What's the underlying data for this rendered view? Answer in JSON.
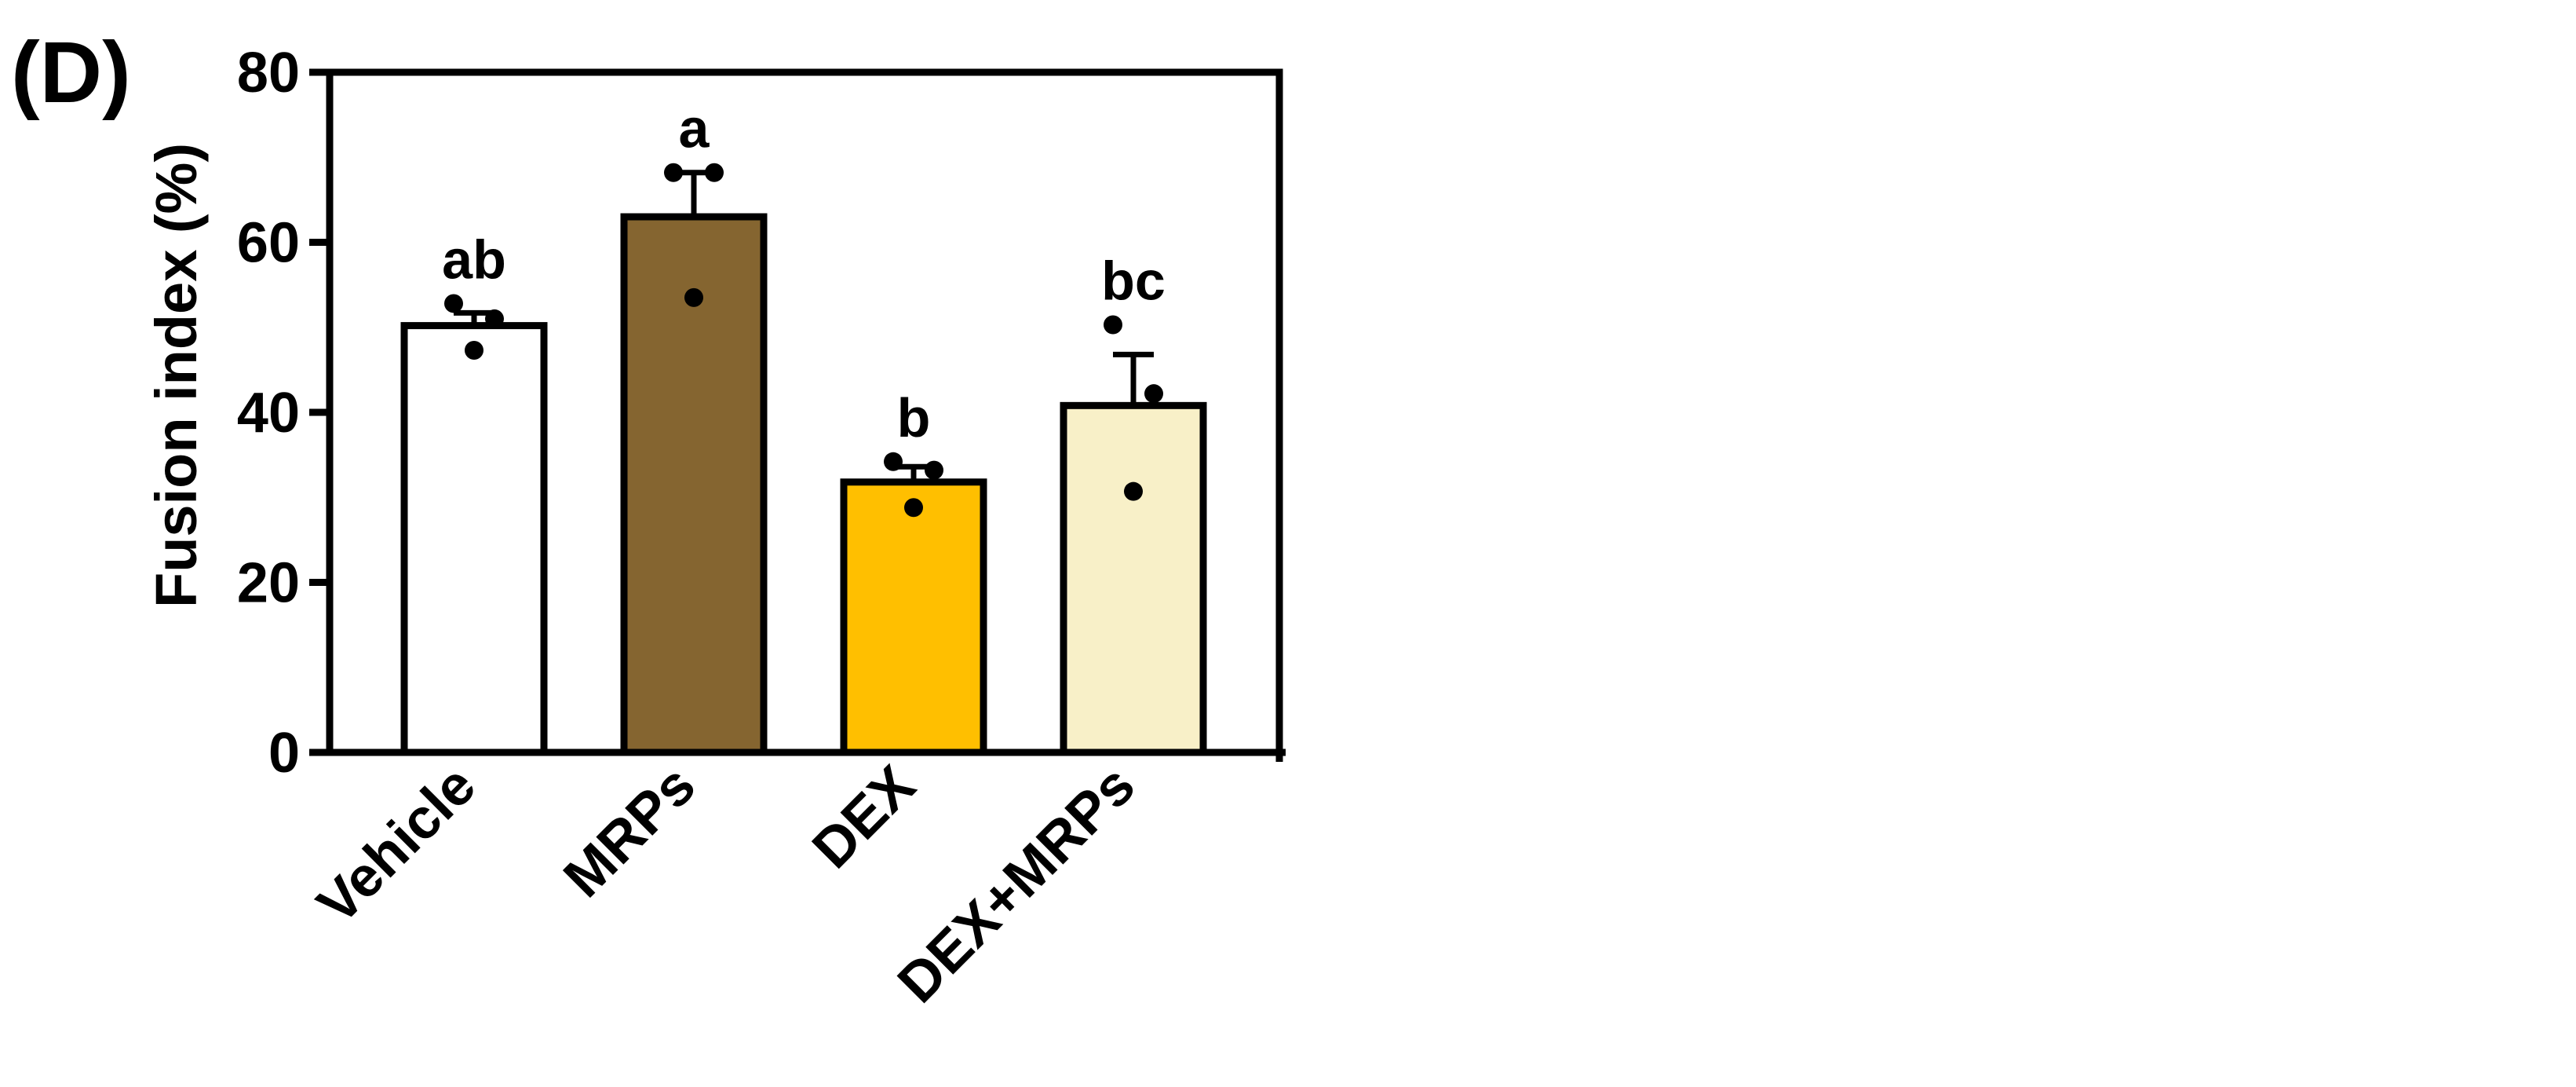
{
  "panel_label": "(D)",
  "chart_data": {
    "type": "bar",
    "title": "",
    "xlabel": "",
    "ylabel": "Fusion index (%)",
    "ylim": [
      0,
      80
    ],
    "yticks": [
      0,
      20,
      40,
      60,
      80
    ],
    "ytick_labels": [
      "0",
      "20",
      "40",
      "60",
      "80"
    ],
    "grid": false,
    "legend": "none",
    "categories": [
      "Vehicle",
      "MRPs",
      "DEX",
      "DEX+MRPs"
    ],
    "values": [
      50.2,
      63.0,
      31.8,
      40.8
    ],
    "errors": [
      1.5,
      5.2,
      1.8,
      6.0
    ],
    "points": [
      [
        52.8,
        51.0,
        47.3
      ],
      [
        68.2,
        68.2,
        53.5
      ],
      [
        34.2,
        33.2,
        28.8
      ],
      [
        50.3,
        42.2,
        30.7
      ]
    ],
    "letters": [
      "ab",
      "a",
      "b",
      "bc"
    ],
    "colors": [
      "#ffffff",
      "#856530",
      "#ffbf00",
      "#f8f0c8"
    ]
  }
}
